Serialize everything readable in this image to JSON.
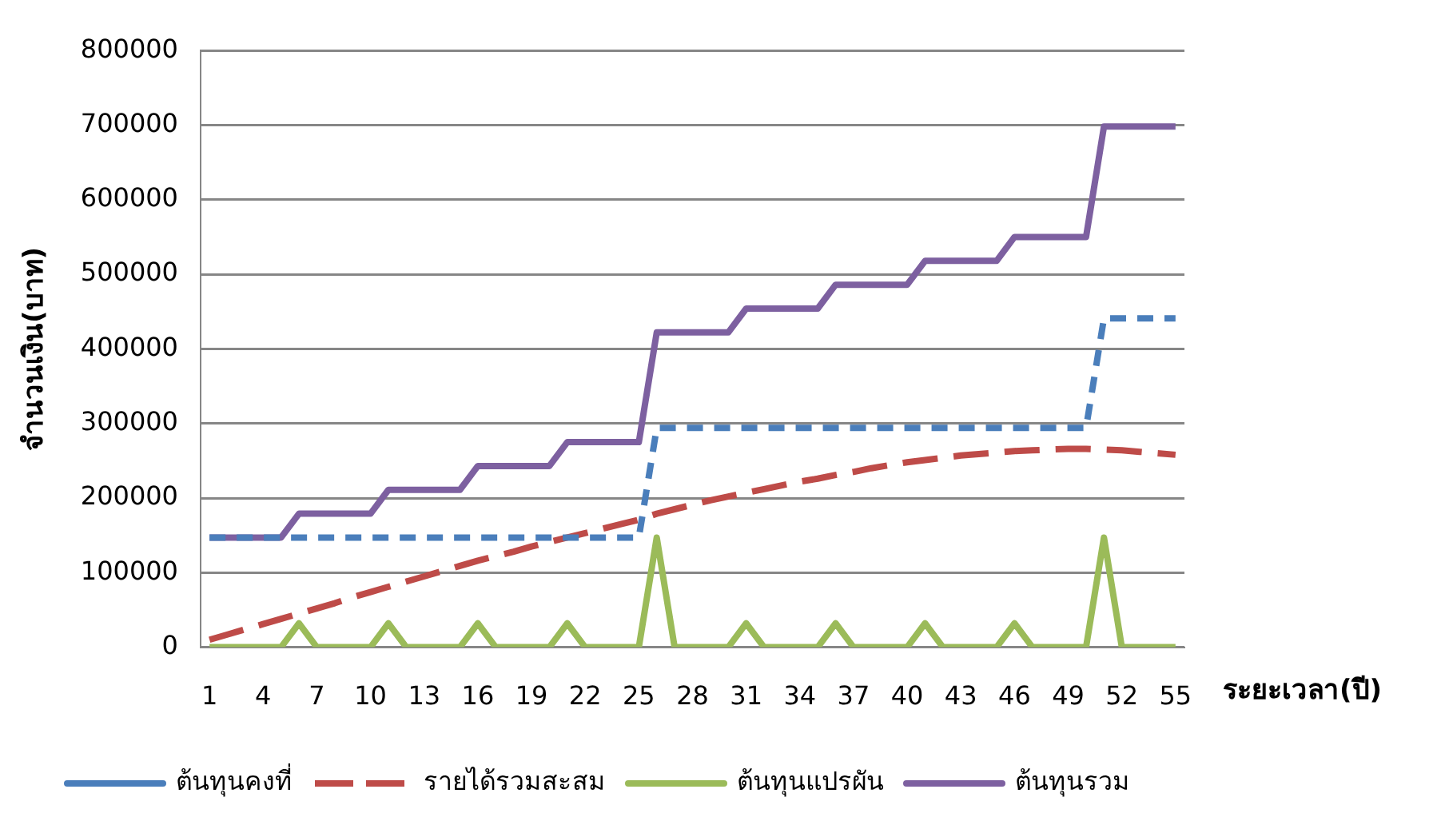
{
  "chart_data": {
    "type": "line",
    "xlabel": "ระยะเวลา(ปี)",
    "ylabel": "จำนวนเงิน(บาท)",
    "categories": [
      "1",
      null,
      null,
      "4",
      null,
      null,
      "7",
      null,
      null,
      "10",
      null,
      null,
      "13",
      null,
      null,
      "16",
      null,
      null,
      "19",
      null,
      null,
      "22",
      null,
      null,
      "25",
      null,
      null,
      "28",
      null,
      null,
      "31",
      null,
      null,
      "34",
      null,
      null,
      "37",
      null,
      null,
      "40",
      null,
      null,
      "43",
      null,
      null,
      "46",
      null,
      null,
      "49",
      null,
      null,
      "52",
      null,
      null,
      "55"
    ],
    "series": [
      {
        "name": "ต้นทุนคงที่",
        "color": "#4a7ebb",
        "line_style": "dashed",
        "values": [
          147000,
          147000,
          147000,
          147000,
          147000,
          147000,
          147000,
          147000,
          147000,
          147000,
          147000,
          147000,
          147000,
          147000,
          147000,
          147000,
          147000,
          147000,
          147000,
          147000,
          147000,
          147000,
          147000,
          147000,
          147000,
          294000,
          294000,
          294000,
          294000,
          294000,
          294000,
          294000,
          294000,
          294000,
          294000,
          294000,
          294000,
          294000,
          294000,
          294000,
          294000,
          294000,
          294000,
          294000,
          294000,
          294000,
          294000,
          294000,
          294000,
          294000,
          441000,
          441000,
          441000,
          441000,
          441000
        ]
      },
      {
        "name": "รายได้รวมสะสม",
        "color": "#be4b48",
        "line_style": "dashed",
        "values": [
          10000,
          17000,
          24000,
          31000,
          38000,
          45000,
          52000,
          59000,
          67000,
          74000,
          81000,
          88000,
          95000,
          102000,
          109000,
          116000,
          122000,
          128000,
          135000,
          141000,
          147000,
          153000,
          159000,
          165000,
          171000,
          179000,
          185000,
          191000,
          197000,
          202000,
          207000,
          212000,
          217000,
          222000,
          226000,
          231000,
          235000,
          240000,
          244000,
          248000,
          251000,
          254000,
          257000,
          259000,
          261000,
          263000,
          264000,
          265000,
          266000,
          266000,
          265000,
          264000,
          262000,
          260000,
          258000
        ]
      },
      {
        "name": "ต้นทุนแปรผัน",
        "color": "#9bbb59",
        "line_style": "solid",
        "values": [
          0,
          0,
          0,
          0,
          0,
          32000,
          0,
          0,
          0,
          0,
          32000,
          0,
          0,
          0,
          0,
          32000,
          0,
          0,
          0,
          0,
          32000,
          0,
          0,
          0,
          0,
          147000,
          0,
          0,
          0,
          0,
          32000,
          0,
          0,
          0,
          0,
          32000,
          0,
          0,
          0,
          0,
          32000,
          0,
          0,
          0,
          0,
          32000,
          0,
          0,
          0,
          0,
          147000,
          0,
          0,
          0,
          0
        ]
      },
      {
        "name": "ต้นทุนรวม",
        "color": "#7d60a0",
        "line_style": "solid",
        "values": [
          147000,
          147000,
          147000,
          147000,
          147000,
          179000,
          179000,
          179000,
          179000,
          179000,
          211000,
          211000,
          211000,
          211000,
          211000,
          243000,
          243000,
          243000,
          243000,
          243000,
          275000,
          275000,
          275000,
          275000,
          275000,
          422000,
          422000,
          422000,
          422000,
          422000,
          454000,
          454000,
          454000,
          454000,
          454000,
          486000,
          486000,
          486000,
          486000,
          486000,
          518000,
          518000,
          518000,
          518000,
          518000,
          550000,
          550000,
          550000,
          550000,
          550000,
          698000,
          698000,
          698000,
          698000,
          698000
        ]
      }
    ],
    "ylim": [
      0,
      800000
    ],
    "yticks": [
      0,
      100000,
      200000,
      300000,
      400000,
      500000,
      600000,
      700000,
      800000
    ],
    "grid": "y",
    "legend": "bottom",
    "marker": "none"
  }
}
